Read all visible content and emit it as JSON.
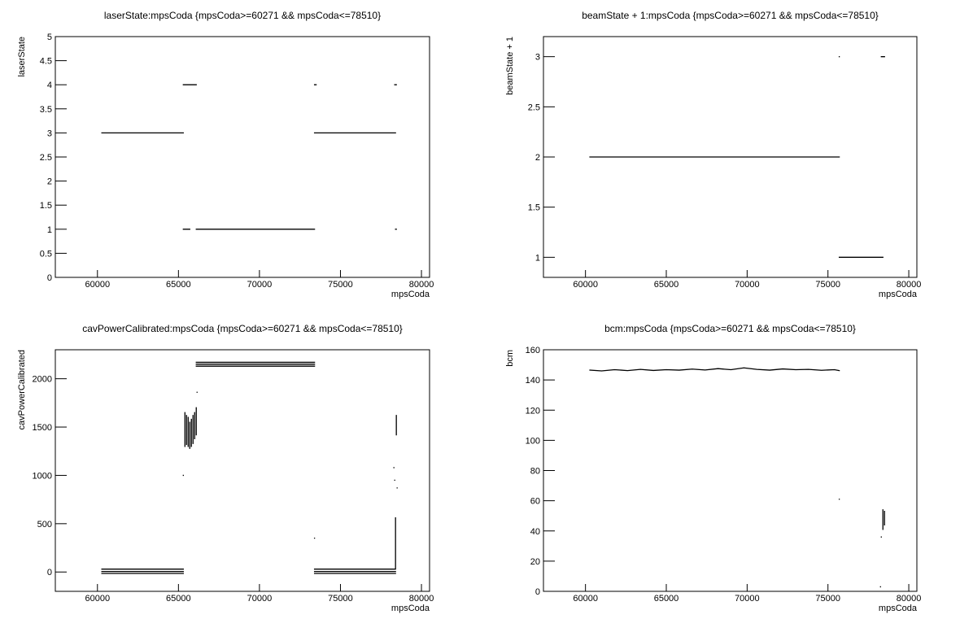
{
  "chart_data": [
    {
      "type": "line",
      "title": "laserState:mpsCoda {mpsCoda>=60271 && mpsCoda<=78510}",
      "x_label": "mpsCoda",
      "y_label": "laserState",
      "xlim": [
        57400,
        80500
      ],
      "xticks": [
        60000,
        65000,
        70000,
        75000,
        80000
      ],
      "ylim": [
        0,
        5
      ],
      "yticks": [
        0,
        0.5,
        1,
        1.5,
        2,
        2.5,
        3,
        3.5,
        4,
        4.5,
        5
      ],
      "series": [
        {
          "color": "#000000",
          "x": [
            60271,
            65300,
            null,
            73400,
            78400,
            null,
            65300,
            66100,
            null,
            73400,
            73500,
            null,
            78350,
            78450,
            null,
            65300,
            65700,
            null,
            66100,
            73400,
            null,
            78400,
            78450
          ],
          "values": [
            3,
            3,
            null,
            3,
            3,
            null,
            4,
            4,
            null,
            4,
            4,
            null,
            4,
            4,
            null,
            1,
            1,
            null,
            1,
            1,
            null,
            1,
            1
          ]
        }
      ]
    },
    {
      "type": "line",
      "title": "beamState + 1:mpsCoda {mpsCoda>=60271 && mpsCoda<=78510}",
      "x_label": "mpsCoda",
      "y_label": "beamState + 1",
      "xlim": [
        57400,
        80500
      ],
      "xticks": [
        60000,
        65000,
        70000,
        75000,
        80000
      ],
      "ylim": [
        0.8,
        3.2
      ],
      "yticks": [
        1,
        1.5,
        2,
        2.5,
        3
      ],
      "series": [
        {
          "color": "#000000",
          "x": [
            60271,
            75700,
            null,
            75700,
            78400,
            null,
            75700,
            null,
            78300,
            78500
          ],
          "values": [
            2,
            2,
            null,
            1,
            1,
            null,
            3,
            null,
            3,
            3
          ]
        }
      ]
    },
    {
      "type": "line",
      "title": "cavPowerCalibrated:mpsCoda {mpsCoda>=60271 && mpsCoda<=78510}",
      "x_label": "mpsCoda",
      "y_label": "cavPowerCalibrated",
      "xlim": [
        57400,
        80500
      ],
      "xticks": [
        60000,
        65000,
        70000,
        75000,
        80000
      ],
      "ylim": [
        -200,
        2300
      ],
      "yticks": [
        0,
        500,
        1000,
        1500,
        2000
      ],
      "series": [
        {
          "color": "#000000",
          "x": [
            60271,
            65300,
            null,
            60271,
            65300,
            null,
            60271,
            65300,
            null,
            66100,
            73400,
            null,
            66100,
            73400,
            null,
            66100,
            73400,
            null,
            73400,
            78400,
            null,
            73400,
            78400,
            null,
            73400,
            78400,
            null,
            65300,
            null,
            65400,
            65400,
            null,
            65500,
            65500,
            null,
            65600,
            65600,
            null,
            65700,
            65700,
            null,
            65800,
            65800,
            null,
            65900,
            65900,
            null,
            66000,
            66000,
            null,
            66100,
            66100,
            null,
            66150,
            null,
            73400,
            null,
            78300,
            null,
            78350,
            null,
            78400,
            78400,
            null,
            78450,
            78450,
            null,
            78500
          ],
          "values": [
            30,
            30,
            null,
            5,
            5,
            null,
            -15,
            -15,
            null,
            2170,
            2170,
            null,
            2150,
            2150,
            null,
            2130,
            2130,
            null,
            30,
            30,
            null,
            5,
            5,
            null,
            -15,
            -15,
            null,
            1000,
            null,
            1300,
            1650,
            null,
            1320,
            1620,
            null,
            1300,
            1600,
            null,
            1280,
            1550,
            null,
            1300,
            1580,
            null,
            1330,
            1620,
            null,
            1380,
            1650,
            null,
            1420,
            1700,
            null,
            1860,
            null,
            350,
            null,
            1080,
            null,
            950,
            null,
            30,
            560,
            null,
            1420,
            1620,
            null,
            870
          ]
        }
      ]
    },
    {
      "type": "line",
      "title": "bcm:mpsCoda {mpsCoda>=60271 && mpsCoda<=78510}",
      "x_label": "mpsCoda",
      "y_label": "bcm",
      "xlim": [
        57400,
        80500
      ],
      "xticks": [
        60000,
        65000,
        70000,
        75000,
        80000
      ],
      "ylim": [
        0,
        160
      ],
      "yticks": [
        0,
        20,
        40,
        60,
        80,
        100,
        120,
        140,
        160
      ],
      "series": [
        {
          "color": "#000000",
          "x": [
            60271,
            61000,
            61800,
            62600,
            63400,
            64200,
            65000,
            65800,
            66600,
            67400,
            68200,
            69000,
            69800,
            70600,
            71400,
            72200,
            73000,
            73800,
            74600,
            75400,
            75700,
            null,
            75700,
            null,
            78250,
            null,
            78300,
            null,
            78400,
            78400,
            null,
            78500,
            78500
          ],
          "values": [
            146.5,
            146,
            146.8,
            146.2,
            147,
            146.3,
            146.8,
            146.5,
            147.2,
            146.6,
            147.5,
            146.8,
            148,
            147,
            146.5,
            147.3,
            146.8,
            147,
            146.4,
            146.8,
            146.2,
            null,
            61,
            null,
            3,
            null,
            36,
            null,
            41,
            54,
            null,
            44,
            53
          ]
        }
      ]
    }
  ]
}
